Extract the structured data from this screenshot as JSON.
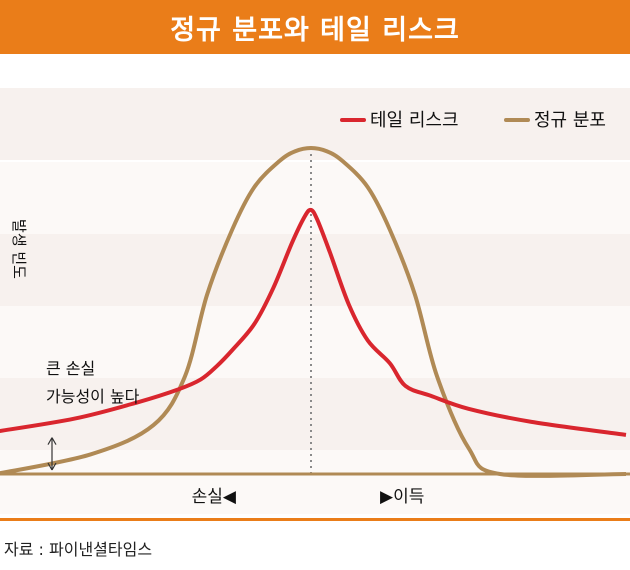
{
  "header": {
    "title": "정규 분포와 테일 리스크"
  },
  "footer": {
    "source": "자료 : 파이낸셜타임스"
  },
  "colors": {
    "accent": "#ea7d19",
    "tail_risk": "#d9262e",
    "normal": "#b08a55"
  },
  "chart_data": {
    "type": "line",
    "title": "정규 분포와 테일 리스크",
    "ylabel": "발생 빈도",
    "xlabel": "",
    "x_range": [
      -1,
      1
    ],
    "ylim": [
      0,
      1
    ],
    "grid": false,
    "legend_position": "top-right",
    "x_left_label": "손실◀",
    "x_right_label": "▶이득",
    "annotation": "큰 손실\n가능성이 높다",
    "series": [
      {
        "name": "테일 리스크",
        "color": "#d9262e",
        "x": [
          -1,
          -0.75,
          -0.55,
          -0.42,
          -0.35,
          -0.3,
          -0.25,
          -0.18,
          -0.12,
          -0.06,
          -0.02,
          0,
          0.02,
          0.06,
          0.12,
          0.18,
          0.25,
          0.3,
          0.38,
          0.5,
          0.7,
          1
        ],
        "y": [
          0.13,
          0.17,
          0.22,
          0.26,
          0.29,
          0.33,
          0.38,
          0.46,
          0.57,
          0.71,
          0.79,
          0.81,
          0.78,
          0.68,
          0.52,
          0.41,
          0.34,
          0.27,
          0.24,
          0.2,
          0.16,
          0.12
        ]
      },
      {
        "name": "정규 분포",
        "color": "#b08a55",
        "x": [
          -1,
          -0.7,
          -0.5,
          -0.4,
          -0.33,
          -0.25,
          -0.18,
          -0.1,
          -0.05,
          0,
          0.05,
          0.1,
          0.18,
          0.25,
          0.33,
          0.4,
          0.5,
          0.6,
          1
        ],
        "y": [
          0,
          0.06,
          0.15,
          0.3,
          0.55,
          0.75,
          0.88,
          0.96,
          0.99,
          1.0,
          0.99,
          0.96,
          0.88,
          0.75,
          0.55,
          0.3,
          0.08,
          0,
          0
        ]
      }
    ]
  }
}
